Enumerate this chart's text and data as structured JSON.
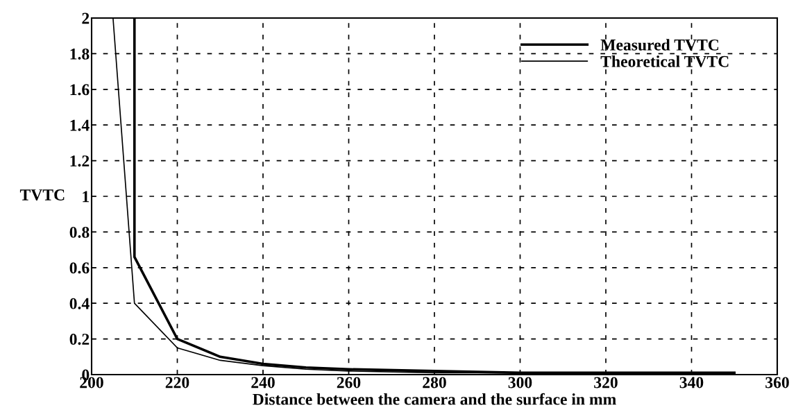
{
  "chart_data": {
    "type": "line",
    "xlabel": "Distance between the camera and the surface in mm",
    "ylabel": "TVTC",
    "series": [
      {
        "name": "Measured TVTC",
        "color": "#000000",
        "x": [
          210,
          210,
          220,
          230,
          240,
          250,
          260,
          280,
          300,
          350
        ],
        "values": [
          2,
          0.66,
          0.2,
          0.1,
          0.06,
          0.04,
          0.03,
          0.02,
          0.01,
          0.01
        ]
      },
      {
        "name": "Theoretical TVTC",
        "color": "#000000",
        "x": [
          205,
          210,
          220,
          230,
          240,
          250,
          260,
          280,
          300,
          350
        ],
        "values": [
          2,
          0.4,
          0.15,
          0.08,
          0.05,
          0.03,
          0.02,
          0.01,
          0.01,
          0.01
        ]
      }
    ],
    "xlim": [
      200,
      360
    ],
    "xticks": [
      200,
      220,
      240,
      260,
      280,
      300,
      320,
      340,
      360
    ],
    "ylim": [
      0,
      2
    ],
    "yticks": [
      0,
      0.2,
      0.4,
      0.6,
      0.8,
      1,
      1.2,
      1.4,
      1.6,
      1.8,
      2
    ],
    "grid": true,
    "legend": "top right",
    "line_style": "solid",
    "marker": "none"
  }
}
